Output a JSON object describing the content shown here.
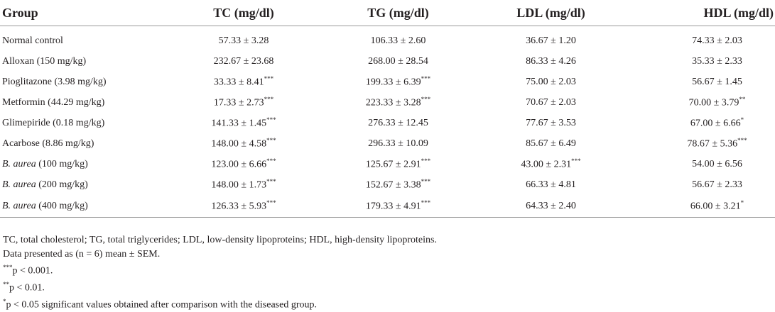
{
  "headers": [
    "Group",
    "TC (mg/dl)",
    "TG (mg/dl)",
    "LDL (mg/dl)",
    "HDL (mg/dl)"
  ],
  "rows": [
    {
      "group": "Normal control",
      "italic": "",
      "rest": "",
      "tc": "57.33 ± 3.28",
      "tc_sig": "",
      "tg": "106.33 ± 2.60",
      "tg_sig": "",
      "ldl": "36.67 ± 1.20",
      "ldl_sig": "",
      "hdl": "74.33 ± 2.03",
      "hdl_sig": ""
    },
    {
      "group": "Alloxan (150 mg/kg)",
      "italic": "",
      "rest": "",
      "tc": "232.67 ± 23.68",
      "tc_sig": "",
      "tg": "268.00 ± 28.54",
      "tg_sig": "",
      "ldl": "86.33 ± 4.26",
      "ldl_sig": "",
      "hdl": "35.33 ± 2.33",
      "hdl_sig": ""
    },
    {
      "group": "Pioglitazone (3.98 mg/kg)",
      "italic": "",
      "rest": "",
      "tc": "33.33 ± 8.41",
      "tc_sig": "***",
      "tg": "199.33 ± 6.39",
      "tg_sig": "***",
      "ldl": "75.00 ± 2.03",
      "ldl_sig": "",
      "hdl": "56.67 ± 1.45",
      "hdl_sig": ""
    },
    {
      "group": "Metformin (44.29 mg/kg)",
      "italic": "",
      "rest": "",
      "tc": "17.33 ± 2.73",
      "tc_sig": "***",
      "tg": "223.33 ± 3.28",
      "tg_sig": "***",
      "ldl": "70.67 ± 2.03",
      "ldl_sig": "",
      "hdl": "70.00 ± 3.79",
      "hdl_sig": "**"
    },
    {
      "group": "Glimepiride (0.18 mg/kg)",
      "italic": "",
      "rest": "",
      "tc": "141.33 ± 1.45",
      "tc_sig": "***",
      "tg": "276.33 ± 12.45",
      "tg_sig": "",
      "ldl": "77.67 ± 3.53",
      "ldl_sig": "",
      "hdl": "67.00 ± 6.66",
      "hdl_sig": "*"
    },
    {
      "group": "Acarbose (8.86 mg/kg)",
      "italic": "",
      "rest": "",
      "tc": "148.00 ± 4.58",
      "tc_sig": "***",
      "tg": "296.33 ± 10.09",
      "tg_sig": "",
      "ldl": "85.67 ± 6.49",
      "ldl_sig": "",
      "hdl": "78.67 ± 5.36",
      "hdl_sig": "***"
    },
    {
      "group": "",
      "italic": "B. aurea",
      "rest": " (100 mg/kg)",
      "tc": "123.00 ± 6.66",
      "tc_sig": "***",
      "tg": "125.67 ± 2.91",
      "tg_sig": "***",
      "ldl": "43.00 ± 2.31",
      "ldl_sig": "***",
      "hdl": "54.00 ± 6.56",
      "hdl_sig": ""
    },
    {
      "group": "",
      "italic": "B. aurea",
      "rest": " (200 mg/kg)",
      "tc": "148.00 ± 1.73",
      "tc_sig": "***",
      "tg": "152.67 ± 3.38",
      "tg_sig": "***",
      "ldl": "66.33 ± 4.81",
      "ldl_sig": "",
      "hdl": "56.67 ± 2.33",
      "hdl_sig": ""
    },
    {
      "group": "",
      "italic": "B. aurea",
      "rest": " (400 mg/kg)",
      "tc": "126.33 ± 5.93",
      "tc_sig": "***",
      "tg": "179.33 ± 4.91",
      "tg_sig": "***",
      "ldl": "64.33 ± 2.40",
      "ldl_sig": "",
      "hdl": "66.00 ± 3.21",
      "hdl_sig": "*"
    }
  ],
  "notes": {
    "abbreviations": "TC, total cholesterol; TG, total triglycerides; LDL, low-density lipoproteins; HDL, high-density lipoproteins.",
    "data_presented": "Data presented as (n = 6) mean ± SEM.",
    "p001_mark": "***",
    "p001_text": "p < 0.001.",
    "p01_mark": "**",
    "p01_text": "p < 0.01.",
    "p05_mark": "*",
    "p05_text": "p < 0.05 significant values obtained after comparison with the diseased group."
  }
}
